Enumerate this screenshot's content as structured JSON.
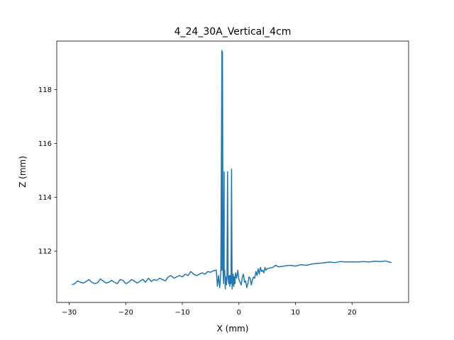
{
  "chart_data": {
    "type": "line",
    "title": "4_24_30A_Vertical_4cm",
    "xlabel": "X (mm)",
    "ylabel": "Z (mm)",
    "xlim": [
      -32.2,
      30.0
    ],
    "ylim": [
      110.1,
      119.8
    ],
    "xticks": [
      -30,
      -20,
      -10,
      0,
      10,
      20
    ],
    "xtick_labels": [
      "−30",
      "−20",
      "−10",
      "0",
      "10",
      "20"
    ],
    "yticks": [
      112,
      114,
      116,
      118
    ],
    "ytick_labels": [
      "112",
      "114",
      "116",
      "118"
    ],
    "grid": false,
    "series": [
      {
        "color": "#1f77b4",
        "x": [
          -29.5,
          -29.0,
          -28.5,
          -28.0,
          -27.5,
          -27.0,
          -26.5,
          -26.0,
          -25.5,
          -25.0,
          -24.5,
          -24.0,
          -23.5,
          -23.0,
          -22.5,
          -22.0,
          -21.5,
          -21.0,
          -20.5,
          -20.0,
          -19.5,
          -19.0,
          -18.5,
          -18.0,
          -17.5,
          -17.0,
          -16.5,
          -16.0,
          -15.5,
          -15.0,
          -14.5,
          -14.0,
          -13.5,
          -13.0,
          -12.5,
          -12.0,
          -11.5,
          -11.0,
          -10.5,
          -10.0,
          -9.5,
          -9.0,
          -8.5,
          -8.0,
          -7.5,
          -7.0,
          -6.5,
          -6.0,
          -5.5,
          -5.0,
          -4.5,
          -4.0,
          -3.8,
          -3.6,
          -3.4,
          -3.2,
          -3.0,
          -3.0,
          -2.9,
          -2.8,
          -2.7,
          -2.6,
          -2.6,
          -2.5,
          -2.4,
          -2.4,
          -2.3,
          -2.2,
          -2.1,
          -2.0,
          -1.9,
          -1.8,
          -1.7,
          -1.6,
          -1.5,
          -1.4,
          -1.3,
          -1.2,
          -1.1,
          -1.0,
          -0.9,
          -0.8,
          -0.7,
          -0.6,
          -0.4,
          -0.2,
          0.0,
          0.2,
          0.4,
          0.6,
          0.8,
          1.0,
          1.2,
          1.4,
          1.6,
          1.8,
          2.0,
          2.2,
          2.4,
          2.6,
          2.8,
          3.0,
          3.2,
          3.4,
          3.6,
          3.8,
          4.0,
          4.2,
          4.4,
          4.6,
          4.8,
          5.0,
          5.5,
          6.0,
          6.5,
          7.0,
          8.0,
          9.0,
          10.0,
          11.0,
          12.0,
          13.0,
          14.0,
          15.0,
          16.0,
          17.0,
          18.0,
          19.0,
          20.0,
          21.0,
          22.0,
          23.0,
          24.0,
          25.0,
          26.0,
          26.5,
          27.0
        ],
        "y": [
          110.76,
          110.8,
          110.9,
          110.85,
          110.82,
          110.88,
          110.95,
          110.85,
          110.8,
          110.83,
          110.97,
          110.9,
          110.82,
          110.85,
          110.92,
          110.85,
          110.8,
          110.95,
          110.92,
          110.8,
          110.85,
          110.95,
          110.9,
          110.82,
          110.88,
          110.96,
          110.85,
          111.0,
          110.88,
          110.95,
          110.92,
          111.0,
          110.95,
          110.9,
          111.05,
          111.1,
          111.0,
          111.05,
          111.1,
          111.05,
          111.15,
          111.1,
          111.25,
          111.15,
          111.1,
          111.15,
          111.2,
          111.15,
          111.25,
          111.22,
          111.28,
          111.3,
          110.7,
          111.1,
          110.65,
          111.2,
          119.45,
          111.3,
          119.4,
          111.25,
          110.8,
          114.95,
          111.1,
          111.3,
          110.6,
          110.9,
          111.05,
          110.75,
          111.1,
          114.95,
          111.0,
          110.8,
          111.1,
          110.7,
          111.1,
          110.8,
          115.05,
          110.6,
          110.8,
          111.15,
          110.7,
          111.05,
          110.8,
          111.2,
          111.0,
          111.3,
          110.95,
          110.85,
          110.75,
          111.05,
          111.15,
          110.85,
          110.9,
          110.65,
          110.8,
          111.05,
          111.0,
          110.75,
          110.95,
          111.05,
          111.0,
          111.25,
          111.1,
          111.35,
          111.15,
          111.4,
          111.25,
          111.3,
          111.2,
          111.4,
          111.3,
          111.35,
          111.38,
          111.4,
          111.48,
          111.42,
          111.45,
          111.48,
          111.45,
          111.5,
          111.48,
          111.53,
          111.55,
          111.57,
          111.6,
          111.58,
          111.62,
          111.6,
          111.61,
          111.6,
          111.62,
          111.6,
          111.63,
          111.62,
          111.64,
          111.6,
          111.58
        ]
      }
    ]
  }
}
